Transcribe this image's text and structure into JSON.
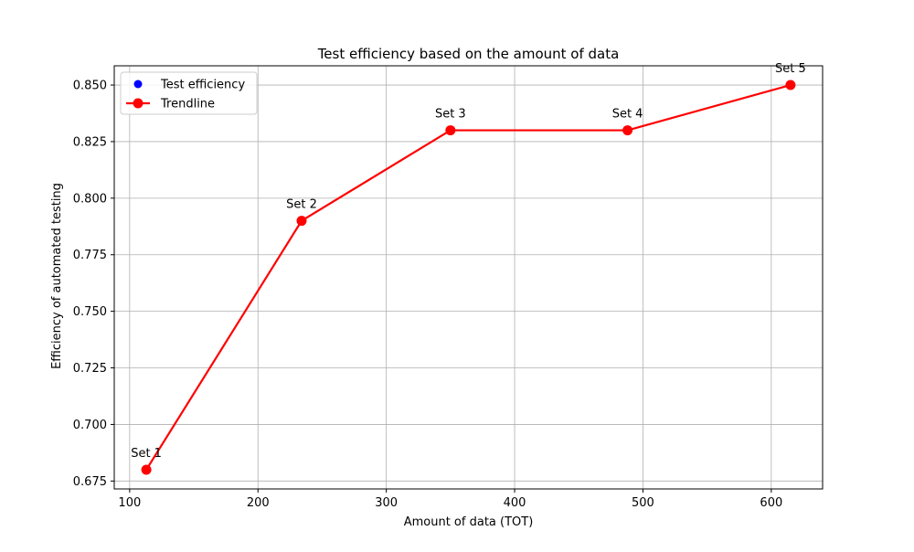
{
  "chart_data": {
    "type": "line",
    "title": "Test efficiency based on the amount of data",
    "xlabel": "Amount of data (TOT)",
    "ylabel": "Efficiency of automated testing",
    "xlim": [
      88,
      640
    ],
    "ylim": [
      0.6715,
      0.8585
    ],
    "grid": true,
    "legend_position": "top-left",
    "x_ticks": [
      100,
      200,
      300,
      400,
      500,
      600
    ],
    "x_tick_labels": [
      "100",
      "200",
      "300",
      "400",
      "500",
      "600"
    ],
    "y_ticks": [
      0.675,
      0.7,
      0.725,
      0.75,
      0.775,
      0.8,
      0.825,
      0.85
    ],
    "y_tick_labels": [
      "0.675",
      "0.700",
      "0.725",
      "0.750",
      "0.775",
      "0.800",
      "0.825",
      "0.850"
    ],
    "series": [
      {
        "name": "Test efficiency",
        "kind": "scatter",
        "color": "#0000ff",
        "x": [
          113,
          234,
          350,
          488,
          615
        ],
        "y": [
          0.68,
          0.79,
          0.83,
          0.83,
          0.85
        ]
      },
      {
        "name": "Trendline",
        "kind": "line",
        "color": "#ff0000",
        "x": [
          113,
          234,
          350,
          488,
          615
        ],
        "y": [
          0.68,
          0.79,
          0.83,
          0.83,
          0.85
        ]
      }
    ],
    "annotations": [
      "Set 1",
      "Set 2",
      "Set 3",
      "Set 4",
      "Set 5"
    ]
  }
}
